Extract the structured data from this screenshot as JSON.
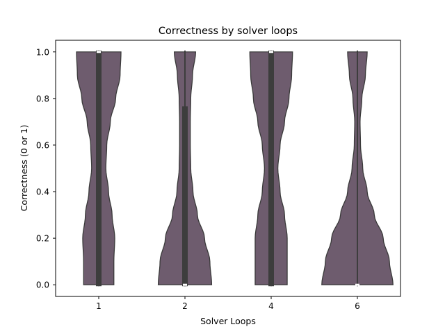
{
  "chart_data": {
    "type": "violin",
    "title": "Correctness by solver loops",
    "xlabel": "Solver Loops",
    "ylabel": "Correctness (0 or 1)",
    "categories": [
      "1",
      "2",
      "4",
      "6"
    ],
    "ylim": [
      -0.05,
      1.05
    ],
    "yticks": [
      0.0,
      0.2,
      0.4,
      0.6,
      0.8,
      1.0
    ],
    "ytick_labels": [
      "0.0",
      "0.2",
      "0.4",
      "0.6",
      "0.8",
      "1.0"
    ],
    "grid": false,
    "fill_color": "#6e5c6e",
    "edge_color": "#3a3a3a",
    "box_color": "#3d3d3d",
    "violins": [
      {
        "category": "1",
        "profile": [
          [
            0.0,
            0.34
          ],
          [
            0.1,
            0.34
          ],
          [
            0.2,
            0.36
          ],
          [
            0.3,
            0.3
          ],
          [
            0.4,
            0.22
          ],
          [
            0.5,
            0.16
          ],
          [
            0.6,
            0.18
          ],
          [
            0.7,
            0.26
          ],
          [
            0.8,
            0.38
          ],
          [
            0.9,
            0.48
          ],
          [
            1.0,
            0.5
          ]
        ],
        "q1": 0.0,
        "median": 1.0,
        "q3": 1.0
      },
      {
        "category": "2",
        "profile": [
          [
            0.0,
            0.6
          ],
          [
            0.1,
            0.56
          ],
          [
            0.2,
            0.44
          ],
          [
            0.3,
            0.28
          ],
          [
            0.4,
            0.18
          ],
          [
            0.5,
            0.13
          ],
          [
            0.6,
            0.12
          ],
          [
            0.7,
            0.12
          ],
          [
            0.8,
            0.13
          ],
          [
            0.9,
            0.17
          ],
          [
            1.0,
            0.24
          ]
        ],
        "q1": 0.0,
        "median": 0.0,
        "q3": 0.76
      },
      {
        "category": "4",
        "profile": [
          [
            0.0,
            0.36
          ],
          [
            0.1,
            0.36
          ],
          [
            0.2,
            0.36
          ],
          [
            0.3,
            0.3
          ],
          [
            0.4,
            0.2
          ],
          [
            0.5,
            0.15
          ],
          [
            0.6,
            0.2
          ],
          [
            0.7,
            0.3
          ],
          [
            0.8,
            0.4
          ],
          [
            0.9,
            0.46
          ],
          [
            1.0,
            0.48
          ]
        ],
        "q1": 0.0,
        "median": 1.0,
        "q3": 1.0
      },
      {
        "category": "6",
        "profile": [
          [
            0.0,
            0.8
          ],
          [
            0.1,
            0.72
          ],
          [
            0.2,
            0.58
          ],
          [
            0.3,
            0.38
          ],
          [
            0.4,
            0.22
          ],
          [
            0.5,
            0.12
          ],
          [
            0.6,
            0.07
          ],
          [
            0.7,
            0.06
          ],
          [
            0.8,
            0.1
          ],
          [
            0.9,
            0.18
          ],
          [
            1.0,
            0.22
          ]
        ],
        "q1": 0.0,
        "median": 0.0,
        "q3": 0.0
      }
    ]
  }
}
